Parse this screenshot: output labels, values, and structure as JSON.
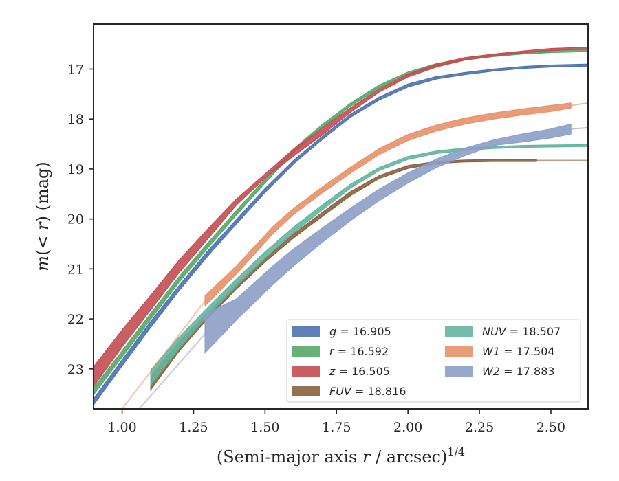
{
  "chart_data": {
    "type": "line",
    "title": "",
    "xlabel": "(Semi-major axis r / arcsec)",
    "xlabel_var": "r",
    "xlabel_exp": "1/4",
    "ylabel": "m(< r) (mag)",
    "xlim": [
      0.9,
      2.63
    ],
    "ylim": [
      23.8,
      16.1
    ],
    "y_inverted": true,
    "grid": false,
    "legend_placement": "lower-right",
    "xticks": [
      1.0,
      1.25,
      1.5,
      1.75,
      2.0,
      2.25,
      2.5
    ],
    "xtick_labels": [
      "1.00",
      "1.25",
      "1.50",
      "1.75",
      "2.00",
      "2.25",
      "2.50"
    ],
    "yticks": [
      17,
      18,
      19,
      20,
      21,
      22,
      23
    ],
    "ytick_labels": [
      "17",
      "18",
      "19",
      "20",
      "21",
      "22",
      "23"
    ],
    "series": [
      {
        "name": "g",
        "legend": "g = 16.905",
        "color": "#4c72b0",
        "x": [
          0.9,
          1.0,
          1.1,
          1.2,
          1.3,
          1.4,
          1.5,
          1.6,
          1.7,
          1.8,
          1.9,
          2.0,
          2.1,
          2.2,
          2.3,
          2.4,
          2.5,
          2.63
        ],
        "low": [
          23.6,
          22.82,
          22.05,
          21.33,
          20.64,
          20.01,
          19.39,
          18.83,
          18.35,
          17.9,
          17.56,
          17.3,
          17.15,
          17.07,
          17.0,
          16.95,
          16.92,
          16.9
        ],
        "high": [
          23.72,
          22.94,
          22.17,
          21.43,
          20.74,
          20.1,
          19.47,
          18.9,
          18.41,
          17.96,
          17.62,
          17.36,
          17.2,
          17.11,
          17.04,
          16.99,
          16.96,
          16.94
        ]
      },
      {
        "name": "r",
        "legend": "r = 16.592",
        "color": "#55a868",
        "x": [
          0.9,
          1.0,
          1.1,
          1.2,
          1.3,
          1.4,
          1.5,
          1.6,
          1.7,
          1.8,
          1.9,
          2.0,
          2.1,
          2.2,
          2.3,
          2.4,
          2.5,
          2.63
        ],
        "low": [
          23.38,
          22.64,
          21.89,
          21.15,
          20.48,
          19.83,
          19.2,
          18.6,
          18.11,
          17.68,
          17.32,
          17.06,
          16.89,
          16.78,
          16.71,
          16.66,
          16.63,
          16.61
        ],
        "high": [
          23.52,
          22.76,
          22.01,
          21.26,
          20.58,
          19.92,
          19.28,
          18.67,
          18.17,
          17.74,
          17.38,
          17.12,
          16.94,
          16.82,
          16.75,
          16.7,
          16.67,
          16.65
        ]
      },
      {
        "name": "z",
        "legend": "z = 16.505",
        "color": "#c44e52",
        "x": [
          0.9,
          1.0,
          1.1,
          1.2,
          1.3,
          1.4,
          1.5,
          1.6,
          1.7,
          1.8,
          1.9,
          2.0,
          2.1,
          2.2,
          2.3,
          2.4,
          2.5,
          2.63
        ],
        "low": [
          22.96,
          22.22,
          21.53,
          20.82,
          20.2,
          19.6,
          19.1,
          18.6,
          18.18,
          17.77,
          17.4,
          17.1,
          16.9,
          16.77,
          16.7,
          16.64,
          16.59,
          16.56
        ],
        "high": [
          23.35,
          22.56,
          21.82,
          21.07,
          20.4,
          19.72,
          19.18,
          18.74,
          18.32,
          17.86,
          17.46,
          17.16,
          16.96,
          16.82,
          16.74,
          16.68,
          16.63,
          16.6
        ]
      },
      {
        "name": "FUV",
        "legend": "FUV = 18.816",
        "color": "#8c613c",
        "x": [
          1.1,
          1.2,
          1.3,
          1.4,
          1.5,
          1.6,
          1.7,
          1.8,
          1.9,
          2.0,
          2.1,
          2.2,
          2.3,
          2.45,
          2.63
        ],
        "low": [
          23.14,
          22.46,
          21.87,
          21.3,
          20.78,
          20.3,
          19.87,
          19.45,
          19.13,
          18.93,
          18.85,
          18.82,
          18.81,
          18.81,
          18.81
        ],
        "high": [
          23.42,
          22.64,
          21.99,
          21.4,
          20.86,
          20.38,
          19.95,
          19.53,
          19.19,
          18.99,
          18.89,
          18.86,
          18.85,
          18.85,
          18.85
        ],
        "extrap_from": 2.45
      },
      {
        "name": "NUV",
        "legend": "NUV = 18.507",
        "color": "#64b5a0",
        "x": [
          1.1,
          1.2,
          1.3,
          1.4,
          1.5,
          1.6,
          1.7,
          1.8,
          1.9,
          2.0,
          2.1,
          2.2,
          2.3,
          2.4,
          2.5,
          2.63
        ],
        "low": [
          23.02,
          22.36,
          21.77,
          21.2,
          20.66,
          20.16,
          19.72,
          19.3,
          18.97,
          18.75,
          18.64,
          18.58,
          18.55,
          18.53,
          18.52,
          18.51
        ],
        "high": [
          23.32,
          22.58,
          21.93,
          21.34,
          20.78,
          20.28,
          19.82,
          19.38,
          19.03,
          18.81,
          18.69,
          18.63,
          18.59,
          18.57,
          18.56,
          18.55
        ]
      },
      {
        "name": "W1",
        "legend": "W1 = 17.504",
        "color": "#e8916a",
        "x": [
          1.29,
          1.4,
          1.53,
          1.6,
          1.7,
          1.8,
          1.9,
          2.0,
          2.1,
          2.2,
          2.3,
          2.4,
          2.5,
          2.57,
          2.63
        ],
        "low": [
          21.54,
          20.94,
          20.14,
          19.79,
          19.36,
          18.96,
          18.59,
          18.31,
          18.12,
          17.98,
          17.88,
          17.8,
          17.73,
          17.68,
          17.66
        ],
        "high": [
          21.74,
          21.1,
          20.28,
          19.91,
          19.48,
          19.08,
          18.71,
          18.43,
          18.24,
          18.1,
          18.0,
          17.92,
          17.85,
          17.78,
          17.7
        ],
        "extrap_from": 2.57,
        "back_extrap": {
          "x": [
            1.0,
            1.29
          ],
          "y": [
            23.8,
            21.64
          ]
        }
      },
      {
        "name": "W2",
        "legend": "W2 = 17.883",
        "color": "#8c9fc7",
        "x": [
          1.29,
          1.4,
          1.53,
          1.6,
          1.7,
          1.8,
          1.9,
          2.0,
          2.1,
          2.2,
          2.3,
          2.4,
          2.5,
          2.57,
          2.63
        ],
        "low": [
          21.9,
          21.6,
          20.93,
          20.6,
          20.18,
          19.78,
          19.4,
          19.08,
          18.8,
          18.58,
          18.42,
          18.3,
          18.2,
          18.1,
          18.15
        ],
        "high": [
          22.68,
          22.02,
          21.3,
          20.94,
          20.47,
          20.03,
          19.63,
          19.28,
          18.97,
          18.73,
          18.53,
          18.46,
          18.38,
          18.3,
          18.2
        ],
        "extrap_from": 2.57,
        "back_extrap": {
          "x": [
            1.06,
            1.29
          ],
          "y": [
            23.8,
            22.3
          ]
        }
      }
    ]
  }
}
